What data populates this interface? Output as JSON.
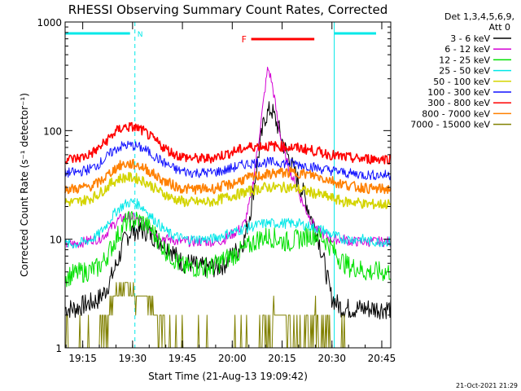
{
  "chart_data": {
    "type": "line",
    "title": "RHESSI Observing Summary Count Rates, Corrected",
    "xlabel": "Start Time (21-Aug-13 19:09:42)",
    "ylabel": "Corrected Count Rate (s⁻¹ detector⁻¹)",
    "x_unit": "minutes after 19:09:42 UT",
    "xlim": [
      0,
      98
    ],
    "ylim": [
      1,
      1000
    ],
    "yscale": "log",
    "grid": false,
    "legend_placement": "right",
    "x_ticks": [
      {
        "label": "19:15",
        "value": 5.3
      },
      {
        "label": "19:30",
        "value": 20.3
      },
      {
        "label": "19:45",
        "value": 35.3
      },
      {
        "label": "20:00",
        "value": 50.3
      },
      {
        "label": "20:15",
        "value": 65.3
      },
      {
        "label": "20:30",
        "value": 80.3
      },
      {
        "label": "20:45",
        "value": 95.3
      }
    ],
    "y_ticks": [
      {
        "label": "1",
        "value": 1
      },
      {
        "label": "10",
        "value": 10
      },
      {
        "label": "100",
        "value": 100
      },
      {
        "label": "1000",
        "value": 1000
      }
    ],
    "series": [
      {
        "name": "3 - 6 keV",
        "color": "#000000",
        "x": [
          0,
          3,
          6,
          8,
          10,
          12,
          14,
          16,
          18,
          20,
          22,
          24,
          26,
          28,
          30,
          32,
          34,
          36,
          38,
          40,
          42,
          44,
          46,
          48,
          50,
          52,
          54,
          56,
          58,
          60,
          62,
          64,
          66,
          68,
          70,
          72,
          74,
          76,
          78,
          80,
          82,
          84,
          86,
          88,
          90,
          92,
          94,
          96,
          98
        ],
        "y": [
          2.3,
          2.3,
          2.5,
          2.6,
          2.8,
          3.3,
          4.5,
          6.5,
          10,
          12,
          12,
          12,
          11,
          10,
          9,
          8,
          6.5,
          6,
          6,
          5.5,
          5.5,
          5.5,
          5.5,
          6,
          7,
          8,
          10,
          20,
          55,
          130,
          160,
          110,
          70,
          50,
          35,
          25,
          16,
          11,
          6,
          3,
          2.5,
          2.3,
          2.3,
          2.3,
          2.3,
          2.3,
          2.3,
          2.3,
          2.3
        ]
      },
      {
        "name": "6 - 12 keV",
        "color": "#d400d4",
        "x": [
          0,
          3,
          6,
          8,
          10,
          12,
          14,
          16,
          18,
          20,
          22,
          24,
          26,
          28,
          30,
          32,
          34,
          36,
          38,
          40,
          42,
          44,
          46,
          48,
          50,
          52,
          54,
          56,
          58,
          60,
          61,
          62,
          63,
          64,
          66,
          68,
          70,
          72,
          74,
          76,
          78,
          80,
          82,
          84,
          86,
          88,
          90,
          92,
          94,
          96,
          98
        ],
        "y": [
          9,
          9,
          9.5,
          10,
          10,
          11,
          13,
          15,
          16,
          16,
          15,
          14,
          12,
          11,
          10,
          10,
          9.5,
          9.5,
          9.5,
          9.5,
          9.5,
          9.5,
          9.5,
          10,
          11,
          12,
          14,
          25,
          70,
          220,
          380,
          300,
          200,
          120,
          60,
          40,
          28,
          20,
          15,
          12,
          11,
          10,
          10,
          10,
          9.5,
          9.5,
          9.5,
          9.5,
          9.5,
          9.5,
          9.5
        ]
      },
      {
        "name": "12 - 25 keV",
        "color": "#00e000",
        "x": [
          0,
          3,
          6,
          8,
          10,
          12,
          14,
          16,
          18,
          20,
          22,
          24,
          26,
          28,
          30,
          32,
          34,
          36,
          38,
          40,
          42,
          44,
          46,
          48,
          50,
          52,
          54,
          56,
          58,
          60,
          62,
          64,
          66,
          68,
          70,
          72,
          74,
          76,
          78,
          80,
          82,
          84,
          86,
          88,
          90,
          92,
          94,
          96,
          98
        ],
        "y": [
          4.5,
          4.8,
          5,
          5.2,
          5.5,
          6.5,
          8.5,
          11,
          14,
          15,
          15,
          14,
          12,
          10,
          8,
          7,
          6,
          5.5,
          5.5,
          5.5,
          5.5,
          5.5,
          6,
          6.5,
          7,
          7.5,
          8,
          9,
          10,
          10.5,
          10.5,
          10,
          9.5,
          9.5,
          10,
          10.5,
          11,
          11,
          10,
          8.5,
          7,
          6,
          5.5,
          5.5,
          5,
          5,
          5,
          5,
          5
        ]
      },
      {
        "name": "25 - 50 keV",
        "color": "#00e8e8",
        "x": [
          0,
          3,
          6,
          8,
          10,
          12,
          14,
          16,
          18,
          20,
          22,
          24,
          26,
          28,
          30,
          32,
          34,
          36,
          38,
          40,
          42,
          44,
          46,
          48,
          50,
          52,
          54,
          56,
          58,
          60,
          62,
          64,
          66,
          68,
          70,
          72,
          74,
          76,
          78,
          80,
          82,
          84,
          86,
          88,
          90,
          92,
          94,
          96,
          98
        ],
        "y": [
          9,
          9,
          9.5,
          10,
          11,
          13,
          16,
          19,
          21,
          22,
          21,
          19,
          16,
          14,
          12,
          11,
          10.5,
          10,
          10,
          10,
          10,
          10,
          10.5,
          11,
          11.5,
          12,
          12.5,
          13,
          13.5,
          14,
          14,
          14,
          14,
          14,
          14,
          13.5,
          13,
          12.5,
          12,
          11,
          10.5,
          10,
          10,
          10,
          10,
          9.5,
          9.5,
          9.5,
          9.5
        ]
      },
      {
        "name": "50 - 100 keV",
        "color": "#d4d400",
        "x": [
          0,
          3,
          6,
          8,
          10,
          12,
          14,
          16,
          18,
          20,
          22,
          24,
          26,
          28,
          30,
          32,
          34,
          36,
          38,
          40,
          42,
          44,
          46,
          48,
          50,
          52,
          54,
          56,
          58,
          60,
          62,
          64,
          66,
          68,
          70,
          72,
          74,
          76,
          78,
          80,
          82,
          84,
          86,
          88,
          90,
          92,
          94,
          96,
          98
        ],
        "y": [
          22,
          22,
          23,
          24,
          26,
          29,
          33,
          36,
          37,
          37,
          36,
          34,
          31,
          28,
          26,
          24,
          23,
          22,
          22,
          22,
          22,
          22,
          23,
          24,
          25,
          26,
          27,
          28,
          29,
          30,
          30,
          30,
          30,
          30,
          29,
          28,
          27,
          26,
          25,
          24,
          23,
          22,
          22,
          22,
          21,
          21,
          21,
          21,
          21
        ]
      },
      {
        "name": "100 - 300 keV",
        "color": "#1010ff",
        "x": [
          0,
          3,
          6,
          8,
          10,
          12,
          14,
          16,
          18,
          20,
          22,
          24,
          26,
          28,
          30,
          32,
          34,
          36,
          38,
          40,
          42,
          44,
          46,
          48,
          50,
          52,
          54,
          56,
          58,
          60,
          62,
          64,
          66,
          68,
          70,
          72,
          74,
          76,
          78,
          80,
          82,
          84,
          86,
          88,
          90,
          92,
          94,
          96,
          98
        ],
        "y": [
          41,
          41,
          43,
          45,
          49,
          55,
          63,
          70,
          73,
          73,
          71,
          67,
          61,
          55,
          50,
          46,
          43,
          42,
          41,
          41,
          41,
          41,
          42,
          43,
          45,
          47,
          49,
          50,
          51,
          51,
          51,
          51,
          50,
          50,
          49,
          48,
          47,
          45,
          44,
          43,
          42,
          41,
          40,
          40,
          39,
          39,
          39,
          39,
          39
        ]
      },
      {
        "name": "300 - 800 keV",
        "color": "#ff0000",
        "x": [
          0,
          3,
          6,
          8,
          10,
          12,
          14,
          16,
          18,
          20,
          22,
          24,
          26,
          28,
          30,
          32,
          34,
          36,
          38,
          40,
          42,
          44,
          46,
          48,
          50,
          52,
          54,
          56,
          58,
          60,
          62,
          64,
          66,
          68,
          70,
          72,
          74,
          76,
          78,
          80,
          82,
          84,
          86,
          88,
          90,
          92,
          94,
          96,
          98
        ],
        "y": [
          55,
          55,
          58,
          62,
          68,
          78,
          90,
          102,
          108,
          108,
          105,
          97,
          86,
          77,
          69,
          63,
          59,
          57,
          56,
          55,
          55,
          56,
          58,
          60,
          63,
          66,
          69,
          71,
          72,
          72,
          72,
          72,
          71,
          70,
          69,
          68,
          66,
          64,
          62,
          60,
          58,
          57,
          56,
          55,
          55,
          55,
          55,
          55,
          55
        ]
      },
      {
        "name": "800 - 7000 keV",
        "color": "#ff8000",
        "x": [
          0,
          3,
          6,
          8,
          10,
          12,
          14,
          16,
          18,
          20,
          22,
          24,
          26,
          28,
          30,
          32,
          34,
          36,
          38,
          40,
          42,
          44,
          46,
          48,
          50,
          52,
          54,
          56,
          58,
          60,
          62,
          64,
          66,
          68,
          70,
          72,
          74,
          76,
          78,
          80,
          82,
          84,
          86,
          88,
          90,
          92,
          94,
          96,
          98
        ],
        "y": [
          29,
          29,
          30,
          31,
          33,
          37,
          42,
          47,
          49,
          49,
          48,
          45,
          41,
          37,
          34,
          32,
          30,
          29,
          29,
          29,
          29,
          29,
          30,
          31,
          32,
          34,
          36,
          37,
          38,
          39,
          40,
          41,
          41,
          41,
          41,
          40,
          39,
          38,
          36,
          35,
          33,
          32,
          31,
          30,
          30,
          29,
          29,
          29,
          29
        ]
      },
      {
        "name": "7000 - 15000 keV",
        "color": "#808000",
        "x": [
          0,
          6,
          12,
          15,
          18,
          21,
          24,
          27,
          30,
          33,
          36,
          39,
          42,
          45,
          48,
          51,
          54,
          57,
          60,
          63,
          66,
          69,
          72,
          75,
          78,
          81,
          84,
          87,
          90,
          93,
          96,
          98
        ],
        "y": [
          1,
          1,
          1.5,
          3,
          4,
          3,
          3,
          2,
          1.5,
          1,
          1,
          1,
          1,
          1,
          1,
          1,
          1,
          1,
          1.5,
          2,
          2,
          1.5,
          1.5,
          2,
          1.5,
          1,
          1,
          1,
          1,
          1,
          1,
          1
        ]
      }
    ],
    "annotations": {
      "night_periods": [
        {
          "label": "N",
          "x_start": 0,
          "x_end": 21
        },
        {
          "label": "",
          "x_start": 81,
          "x_end": 98
        }
      ],
      "saa_period": {
        "label": "",
        "x_start": 81,
        "x_end": 98
      },
      "flare_flag": {
        "label": "F",
        "x_start": 56,
        "x_end": 75
      }
    },
    "legend_header": "Det 1,3,4,5,6,9,",
    "legend_header2": "Att 0",
    "timestamp": "21-Oct-2021 21:29"
  }
}
